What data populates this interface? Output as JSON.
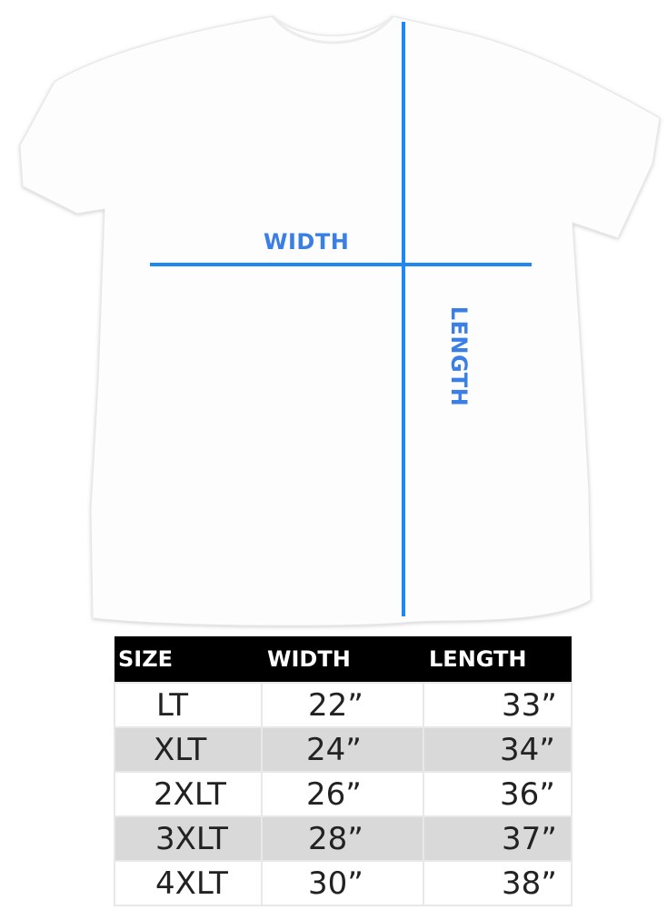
{
  "diagram": {
    "width_label": "WIDTH",
    "length_label": "LENGTH",
    "line_color": "#1e88f0",
    "label_color": "#3a7fe6",
    "shirt_color": "#ffffff"
  },
  "size_table": {
    "headers": [
      "SIZE",
      "WIDTH",
      "LENGTH"
    ],
    "rows": [
      [
        "LT",
        "22”",
        "33”"
      ],
      [
        "XLT",
        "24”",
        "34”"
      ],
      [
        "2XLT",
        "26”",
        "36”"
      ],
      [
        "3XLT",
        "28”",
        "37”"
      ],
      [
        "4XLT",
        "30”",
        "38”"
      ]
    ]
  }
}
